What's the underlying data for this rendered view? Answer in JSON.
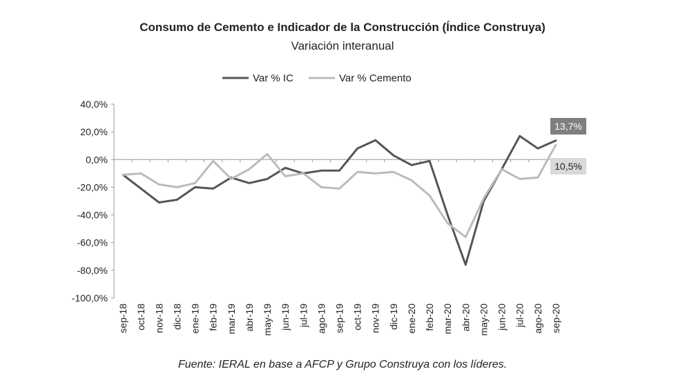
{
  "chart_data": {
    "type": "line",
    "title": "Consumo de Cemento e Indicador de la Construcción (Índice Construya)",
    "subtitle": "Variación interanual",
    "source": "Fuente: IERAL en base a AFCP y Grupo Construya con los líderes.",
    "categories": [
      "sep-18",
      "oct-18",
      "nov-18",
      "dic-18",
      "ene-19",
      "feb-19",
      "mar-19",
      "abr-19",
      "may-19",
      "jun-19",
      "jul-19",
      "ago-19",
      "sep-19",
      "oct-19",
      "nov-19",
      "dic-19",
      "ene-20",
      "feb-20",
      "mar-20",
      "abr-20",
      "may-20",
      "jun-20",
      "jul-20",
      "ago-20",
      "sep-20"
    ],
    "ylim": [
      -100,
      40
    ],
    "yticks": [
      40,
      20,
      0,
      -20,
      -40,
      -60,
      -80,
      -100
    ],
    "ytick_labels": [
      "40,0%",
      "20,0%",
      "0,0%",
      "-20,0%",
      "-40,0%",
      "-60,0%",
      "-80,0%",
      "-100,0%"
    ],
    "legend_position": "top",
    "series": [
      {
        "name": "Var % IC",
        "color": "#555555",
        "values": [
          -11,
          -21,
          -31,
          -29,
          -20,
          -21,
          -13,
          -17,
          -14,
          -6,
          -10,
          -8,
          -8,
          8,
          14,
          3,
          -4,
          -1,
          -40,
          -76,
          -30,
          -7,
          17,
          8,
          13.7
        ]
      },
      {
        "name": "Var % Cemento",
        "color": "#bbbbbb",
        "values": [
          -11,
          -10,
          -18,
          -20,
          -17,
          -1,
          -14,
          -7,
          4,
          -12,
          -10,
          -20,
          -21,
          -9,
          -10,
          -9,
          -15,
          -26,
          -46,
          -56,
          -28,
          -7,
          -14,
          -13,
          10.5
        ]
      }
    ],
    "annotations": [
      {
        "label": "13,7%",
        "series": 0,
        "fill": "#7f7f7f",
        "text_color": "#ffffff"
      },
      {
        "label": "10,5%",
        "series": 1,
        "fill": "#d9d9d9",
        "text_color": "#222222"
      }
    ]
  }
}
